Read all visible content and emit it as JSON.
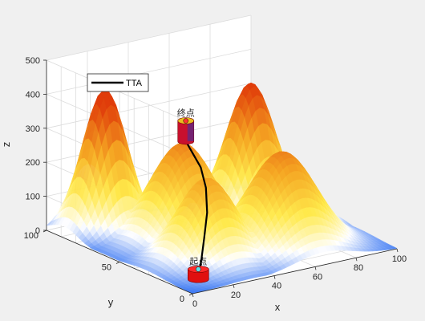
{
  "chart_data": {
    "type": "surface3d",
    "title": "",
    "xlabel": "x",
    "ylabel": "y",
    "zlabel": "z",
    "xlim": [
      0,
      100
    ],
    "ylim": [
      0,
      100
    ],
    "zlim": [
      0,
      500
    ],
    "x_ticks": [
      0,
      20,
      40,
      60,
      80,
      100
    ],
    "y_ticks": [
      0,
      50,
      100
    ],
    "z_ticks": [
      0,
      100,
      200,
      300,
      400,
      500
    ],
    "grid": true,
    "legend": {
      "position": "top-left",
      "entries": [
        "TTA"
      ]
    },
    "colormap": [
      "#2a6cf2",
      "#ffffff",
      "#ffe94a",
      "#f5a623",
      "#e03c0a"
    ],
    "peaks": [
      {
        "x": 20,
        "y": 88,
        "h": 410,
        "w": 9
      },
      {
        "x": 38,
        "y": 60,
        "h": 280,
        "w": 13
      },
      {
        "x": 30,
        "y": 32,
        "h": 240,
        "w": 12
      },
      {
        "x": 80,
        "y": 72,
        "h": 380,
        "w": 10
      },
      {
        "x": 64,
        "y": 28,
        "h": 280,
        "w": 14
      },
      {
        "x": 82,
        "y": 40,
        "h": 140,
        "w": 9
      },
      {
        "x": 90,
        "y": 58,
        "h": 120,
        "w": 8
      }
    ],
    "series": [
      {
        "name": "TTA",
        "color": "#000000",
        "points": [
          {
            "x": 10,
            "y": 10,
            "z": 10
          },
          {
            "x": 20,
            "y": 22,
            "z": 30
          },
          {
            "x": 30,
            "y": 34,
            "z": 60
          },
          {
            "x": 40,
            "y": 46,
            "z": 100
          },
          {
            "x": 48,
            "y": 58,
            "z": 140
          },
          {
            "x": 54,
            "y": 70,
            "z": 170
          },
          {
            "x": 58,
            "y": 82,
            "z": 190
          },
          {
            "x": 61,
            "y": 90,
            "z": 200
          }
        ]
      }
    ],
    "markers": [
      {
        "label": "起点",
        "x": 10,
        "y": 10,
        "z": 10,
        "height": 30,
        "color": "#e01010"
      },
      {
        "label": "终点",
        "x": 61,
        "y": 90,
        "z": 200,
        "height": 60,
        "color": "#c8102e"
      }
    ]
  }
}
